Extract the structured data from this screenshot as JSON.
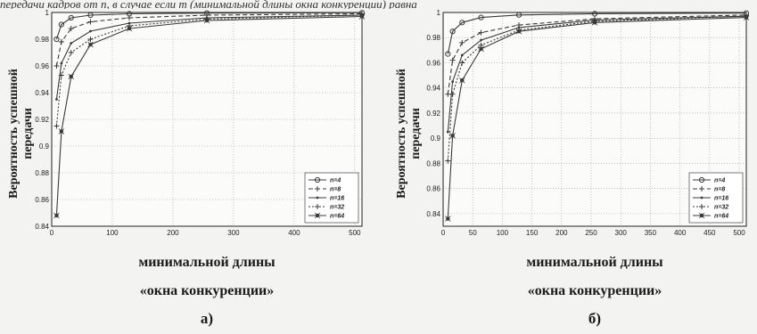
{
  "top_text": "передачи кадров от n, в случае если m (минимальной длины окна конкуренции) равна",
  "panels": [
    {
      "caption": "а)",
      "ylabel_line1": "Вероятность успешной",
      "ylabel_line2": "передачи",
      "xlabel_line1": "минимальной длины",
      "xlabel_line2": "«окна конкуренции»"
    },
    {
      "caption": "б)",
      "ylabel_line1": "Вероятность успешной",
      "ylabel_line2": "передачи",
      "xlabel_line1": "минимальной длины",
      "xlabel_line2": "«окна конкуренции»"
    }
  ],
  "chart_data": [
    {
      "type": "line",
      "xlim": [
        0,
        512
      ],
      "ylim": [
        0.84,
        1.0
      ],
      "xticks": [
        0,
        100,
        200,
        300,
        400,
        500
      ],
      "yticks": [
        0.84,
        0.86,
        0.88,
        0.9,
        0.92,
        0.94,
        0.96,
        0.98,
        1
      ],
      "grid": true,
      "legend_position": "bottom-right",
      "series": [
        {
          "name": "n=4",
          "marker": "circle",
          "dash": "",
          "x": [
            8,
            16,
            32,
            64,
            128,
            256,
            512
          ],
          "y": [
            0.98,
            0.991,
            0.996,
            0.998,
            0.999,
            0.9995,
            0.9998
          ]
        },
        {
          "name": "n=8",
          "marker": "plus",
          "dash": "5,3",
          "x": [
            8,
            16,
            32,
            64,
            128,
            256,
            512
          ],
          "y": [
            0.96,
            0.978,
            0.988,
            0.993,
            0.996,
            0.998,
            0.999
          ]
        },
        {
          "name": "n=16",
          "marker": "dot",
          "dash": "",
          "x": [
            8,
            16,
            32,
            64,
            128,
            256,
            512
          ],
          "y": [
            0.935,
            0.962,
            0.977,
            0.986,
            0.992,
            0.996,
            0.998
          ]
        },
        {
          "name": "n=32",
          "marker": "plus",
          "dash": "2,2",
          "x": [
            8,
            16,
            32,
            64,
            128,
            256,
            512
          ],
          "y": [
            0.915,
            0.953,
            0.97,
            0.98,
            0.99,
            0.995,
            0.998
          ]
        },
        {
          "name": "n=64",
          "marker": "star",
          "dash": "",
          "x": [
            8,
            16,
            32,
            64,
            128,
            256,
            512
          ],
          "y": [
            0.848,
            0.911,
            0.952,
            0.976,
            0.988,
            0.994,
            0.997
          ]
        }
      ]
    },
    {
      "type": "line",
      "xlim": [
        0,
        512
      ],
      "ylim": [
        0.83,
        1.0
      ],
      "xticks": [
        0,
        50,
        100,
        150,
        200,
        250,
        300,
        350,
        400,
        450,
        500
      ],
      "yticks": [
        0.84,
        0.86,
        0.88,
        0.9,
        0.92,
        0.94,
        0.96,
        0.98,
        1
      ],
      "grid": true,
      "legend_position": "bottom-right",
      "series": [
        {
          "name": "n=4",
          "marker": "circle",
          "dash": "",
          "x": [
            8,
            16,
            32,
            64,
            128,
            256,
            512
          ],
          "y": [
            0.967,
            0.985,
            0.992,
            0.996,
            0.998,
            0.999,
            0.9995
          ]
        },
        {
          "name": "n=8",
          "marker": "plus",
          "dash": "5,3",
          "x": [
            8,
            16,
            32,
            64,
            128,
            256,
            512
          ],
          "y": [
            0.935,
            0.962,
            0.976,
            0.984,
            0.99,
            0.995,
            0.998
          ]
        },
        {
          "name": "n=16",
          "marker": "dot",
          "dash": "",
          "x": [
            8,
            16,
            32,
            64,
            128,
            256,
            512
          ],
          "y": [
            0.905,
            0.945,
            0.966,
            0.978,
            0.988,
            0.994,
            0.997
          ]
        },
        {
          "name": "n=32",
          "marker": "plus",
          "dash": "2,2",
          "x": [
            8,
            16,
            32,
            64,
            128,
            256,
            512
          ],
          "y": [
            0.882,
            0.935,
            0.96,
            0.974,
            0.986,
            0.993,
            0.997
          ]
        },
        {
          "name": "n=64",
          "marker": "star",
          "dash": "",
          "x": [
            8,
            16,
            32,
            64,
            128,
            256,
            512
          ],
          "y": [
            0.836,
            0.902,
            0.946,
            0.971,
            0.985,
            0.992,
            0.996
          ]
        }
      ]
    }
  ],
  "colors": {
    "line": "#3a3a3a",
    "grid": "#9a9a9a",
    "plot_bg": "#fbfbfa"
  }
}
